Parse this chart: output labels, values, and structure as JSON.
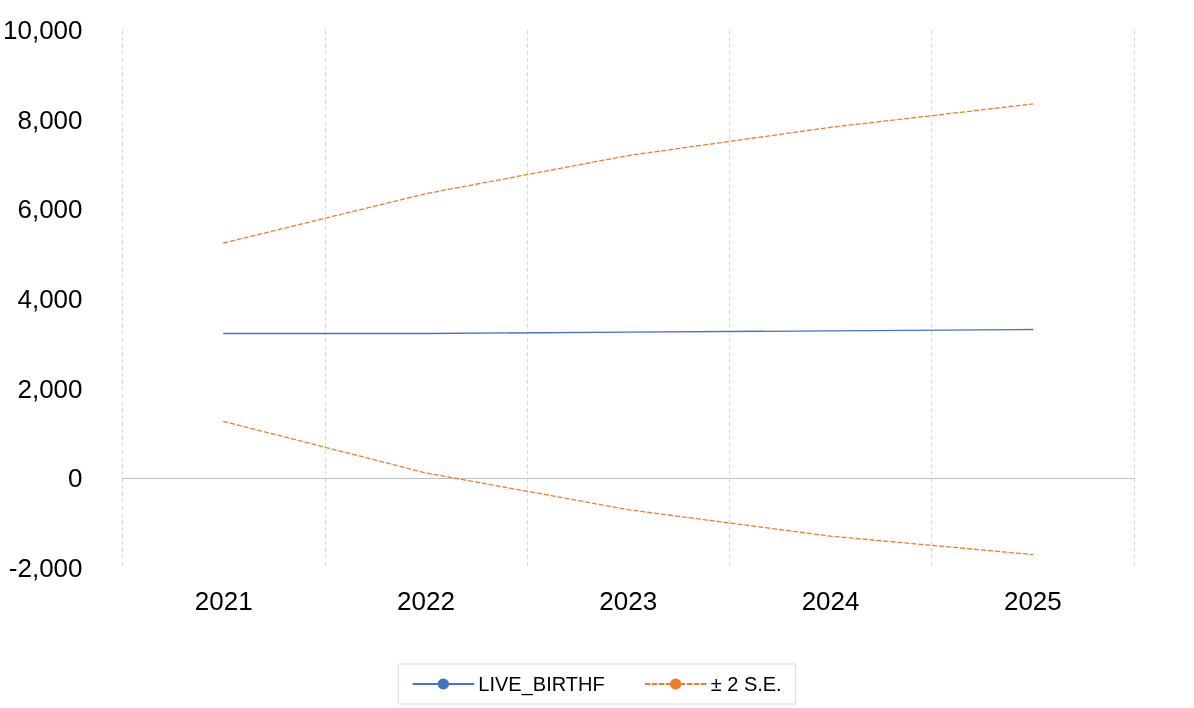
{
  "chart_data": {
    "type": "line",
    "categories": [
      "2021",
      "2022",
      "2023",
      "2024",
      "2025"
    ],
    "series": [
      {
        "name": "LIVE_BIRTHF",
        "color": "#4472c4",
        "line_style": "solid",
        "values": [
          3230,
          3230,
          3260,
          3290,
          3320
        ]
      },
      {
        "name": "± 2 S.E.",
        "color": "#ed7d31",
        "line_style": "dashed",
        "values": [
          5250,
          6350,
          7200,
          7830,
          8350
        ]
      },
      {
        "color": "#ed7d31",
        "line_style": "dashed",
        "values": [
          1270,
          120,
          -700,
          -1290,
          -1700
        ]
      }
    ],
    "ylim": [
      -2000,
      10000
    ],
    "yticks": [
      {
        "value": -2000,
        "label": "-2,000"
      },
      0,
      {
        "value": 2000,
        "label": "2,000"
      },
      {
        "value": 4000,
        "label": "4,000"
      },
      {
        "value": 6000,
        "label": "6,000"
      },
      {
        "value": 8000,
        "label": "8,000"
      },
      {
        "value": 10000,
        "label": "10,000"
      }
    ],
    "grid": "x",
    "legend": "bottom",
    "marker": "none"
  }
}
